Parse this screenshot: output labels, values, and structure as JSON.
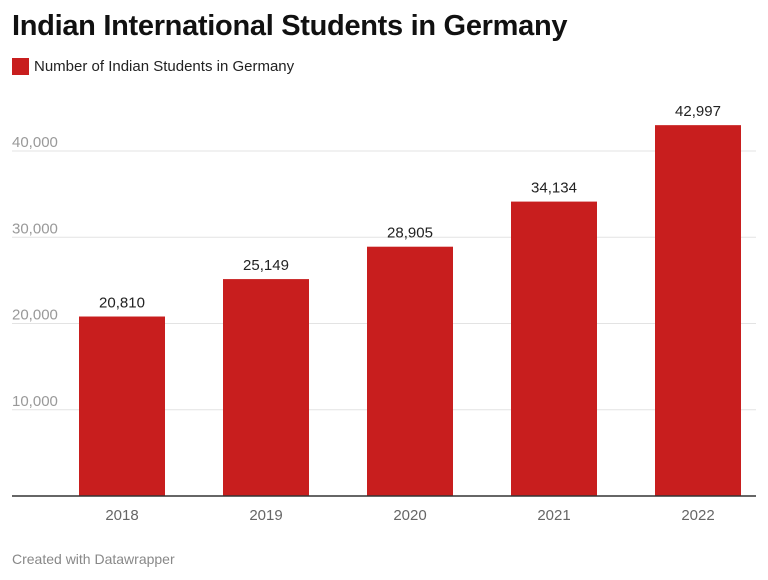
{
  "title": "Indian International Students in Germany",
  "legend": {
    "label": "Number of Indian Students in Germany"
  },
  "footer": "Created with Datawrapper",
  "colors": {
    "bar": "#c81e1e",
    "grid": "#e3e3e3",
    "axis": "#333333",
    "tick": "#999999"
  },
  "chart_data": {
    "type": "bar",
    "title": "Indian International Students in Germany",
    "categories": [
      "2018",
      "2019",
      "2020",
      "2021",
      "2022"
    ],
    "series": [
      {
        "name": "Number of Indian Students in Germany",
        "values": [
          20810,
          25149,
          28905,
          34134,
          42997
        ]
      }
    ],
    "data_labels": [
      "20,810",
      "25,149",
      "28,905",
      "34,134",
      "42,997"
    ],
    "yticks": [
      10000,
      20000,
      30000,
      40000
    ],
    "ytick_labels": [
      "10,000",
      "20,000",
      "30,000",
      "40,000"
    ],
    "ylim": [
      0,
      40000
    ],
    "grid": true,
    "legend_position": "top-left"
  }
}
